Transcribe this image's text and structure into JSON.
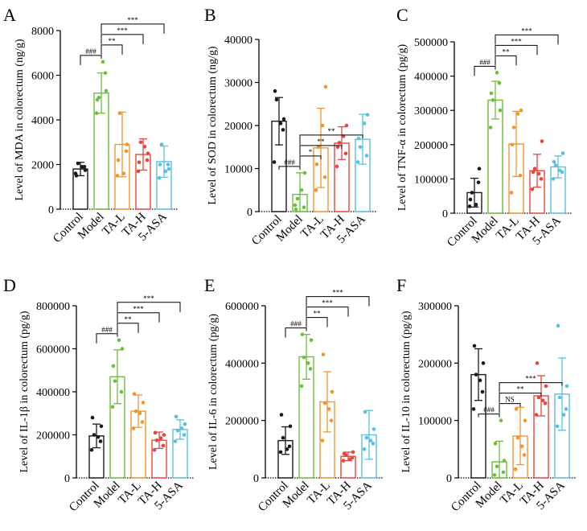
{
  "colors": {
    "Control": "#1a1a1a",
    "Model": "#6cbf3a",
    "TA-L": "#f0962e",
    "TA-H": "#e8453c",
    "5-ASA": "#5bbfe0"
  },
  "chart_data": [
    {
      "type": "bar",
      "panel": "A",
      "ylabel": "Level of MDA in colorectum (ng/g)",
      "ylim": [
        0,
        8000
      ],
      "yticks": [
        0,
        2000,
        4000,
        6000,
        8000
      ],
      "ytick_labels": [
        "0",
        "2000",
        "4000",
        "6000",
        "8000"
      ],
      "categories": [
        "Control",
        "Model",
        "TA-L",
        "TA-H",
        "5-ASA"
      ],
      "values": [
        1800,
        5200,
        2900,
        2450,
        2130
      ],
      "errors": [
        300,
        900,
        1450,
        700,
        700
      ],
      "points": [
        [
          1600,
          1900,
          2050,
          1750,
          1500,
          1900
        ],
        [
          4300,
          6100,
          5000,
          5300,
          4900,
          6600
        ],
        [
          1500,
          2600,
          4300,
          2900,
          2200,
          1600
        ],
        [
          1700,
          2200,
          3000,
          2500,
          2100,
          2800
        ],
        [
          1400,
          2000,
          2900,
          1800,
          2000,
          1700
        ]
      ],
      "comparisons": [
        {
          "from": 0,
          "to": 1,
          "label": "###"
        },
        {
          "from": 1,
          "to": 2,
          "label": "**"
        },
        {
          "from": 1,
          "to": 3,
          "label": "***"
        },
        {
          "from": 1,
          "to": 4,
          "label": "***"
        }
      ]
    },
    {
      "type": "bar",
      "panel": "B",
      "ylabel": "Level of SOD in colorectum (ng/g)",
      "ylim": [
        0,
        40000
      ],
      "yticks": [
        0,
        10000,
        20000,
        30000,
        40000
      ],
      "ytick_labels": [
        "0",
        "10000",
        "20000",
        "30000",
        "40000"
      ],
      "categories": [
        "Control",
        "Model",
        "TA-L",
        "TA-H",
        "5-ASA"
      ],
      "values": [
        21000,
        4000,
        14800,
        15900,
        16800
      ],
      "errors": [
        5500,
        5000,
        9200,
        3800,
        5800
      ],
      "points": [
        [
          11500,
          19000,
          26000,
          21500,
          28000,
          20500
        ],
        [
          1500,
          1000,
          3000,
          9000,
          500,
          5000
        ],
        [
          5000,
          8000,
          15000,
          29000,
          11000,
          20000
        ],
        [
          10500,
          13500,
          16000,
          20000,
          15000,
          17500
        ],
        [
          11500,
          13000,
          15000,
          22500,
          17000,
          20500
        ]
      ],
      "comparisons": [
        {
          "from": 0,
          "to": 1,
          "label": "###"
        },
        {
          "from": 1,
          "to": 2,
          "label": "*"
        },
        {
          "from": 1,
          "to": 3,
          "label": "**"
        },
        {
          "from": 1,
          "to": 4,
          "label": "**"
        }
      ]
    },
    {
      "type": "bar",
      "panel": "C",
      "ylabel": "Level of TNF-α in colorectum (pg/g)",
      "ylim": [
        0,
        500000
      ],
      "yticks": [
        0,
        100000,
        200000,
        300000,
        400000,
        500000
      ],
      "ytick_labels": [
        "0",
        "100000",
        "200000",
        "300000",
        "400000",
        "500000"
      ],
      "categories": [
        "Control",
        "Model",
        "TA-L",
        "TA-H",
        "5-ASA"
      ],
      "values": [
        60000,
        330000,
        202000,
        124000,
        135000
      ],
      "errors": [
        42000,
        55000,
        95000,
        48000,
        32000
      ],
      "points": [
        [
          20000,
          90000,
          60000,
          130000,
          40000,
          25000
        ],
        [
          250000,
          380000,
          330000,
          300000,
          350000,
          410000
        ],
        [
          60000,
          110000,
          250000,
          300000,
          200000,
          290000
        ],
        [
          70000,
          100000,
          130000,
          210000,
          120000,
          115000
        ],
        [
          100000,
          120000,
          140000,
          175000,
          150000,
          125000
        ]
      ],
      "comparisons": [
        {
          "from": 0,
          "to": 1,
          "label": "###"
        },
        {
          "from": 1,
          "to": 2,
          "label": "**"
        },
        {
          "from": 1,
          "to": 3,
          "label": "***"
        },
        {
          "from": 1,
          "to": 4,
          "label": "***"
        }
      ]
    },
    {
      "type": "bar",
      "panel": "D",
      "ylabel": "Level of IL-1β in colorectum (pg/g)",
      "ylim": [
        0,
        800000
      ],
      "yticks": [
        0,
        200000,
        400000,
        600000,
        800000
      ],
      "ytick_labels": [
        "0",
        "200000",
        "400000",
        "600000",
        "800000"
      ],
      "categories": [
        "Control",
        "Model",
        "TA-L",
        "TA-H",
        "5-ASA"
      ],
      "values": [
        195000,
        470000,
        310000,
        175000,
        225000
      ],
      "errors": [
        55000,
        125000,
        75000,
        38000,
        45000
      ],
      "points": [
        [
          130000,
          170000,
          200000,
          240000,
          280000,
          190000
        ],
        [
          330000,
          400000,
          450000,
          600000,
          520000,
          640000
        ],
        [
          230000,
          260000,
          310000,
          350000,
          390000,
          300000
        ],
        [
          130000,
          150000,
          175000,
          200000,
          210000,
          185000
        ],
        [
          170000,
          200000,
          220000,
          250000,
          285000,
          230000
        ]
      ],
      "comparisons": [
        {
          "from": 0,
          "to": 1,
          "label": "###"
        },
        {
          "from": 1,
          "to": 2,
          "label": "**"
        },
        {
          "from": 1,
          "to": 3,
          "label": "***"
        },
        {
          "from": 1,
          "to": 4,
          "label": "***"
        }
      ]
    },
    {
      "type": "bar",
      "panel": "E",
      "ylabel": "Level of IL-6 in colorectum (pg/g)",
      "ylim": [
        0,
        600000
      ],
      "yticks": [
        0,
        200000,
        400000,
        600000
      ],
      "ytick_labels": [
        "0",
        "200000",
        "400000",
        "600000"
      ],
      "categories": [
        "Control",
        "Model",
        "TA-L",
        "TA-H",
        "5-ASA"
      ],
      "values": [
        130000,
        422000,
        265000,
        75000,
        150000
      ],
      "errors": [
        48000,
        78000,
        105000,
        15000,
        85000
      ],
      "points": [
        [
          90000,
          110000,
          140000,
          180000,
          220000,
          100000
        ],
        [
          320000,
          380000,
          420000,
          480000,
          500000,
          400000
        ],
        [
          130000,
          200000,
          260000,
          300000,
          430000,
          240000
        ],
        [
          60000,
          70000,
          80000,
          90000,
          85000,
          65000
        ],
        [
          100000,
          120000,
          140000,
          170000,
          230000,
          130000
        ]
      ],
      "comparisons": [
        {
          "from": 0,
          "to": 1,
          "label": "###"
        },
        {
          "from": 1,
          "to": 2,
          "label": "**"
        },
        {
          "from": 1,
          "to": 3,
          "label": "***"
        },
        {
          "from": 1,
          "to": 4,
          "label": "***"
        }
      ]
    },
    {
      "type": "bar",
      "panel": "F",
      "ylabel": "Level of IL-10 in colorectum (pg/g)",
      "ylim": [
        0,
        300000
      ],
      "yticks": [
        0,
        100000,
        200000,
        300000
      ],
      "ytick_labels": [
        "0",
        "100000",
        "200000",
        "300000"
      ],
      "categories": [
        "Control",
        "Model",
        "TA-L",
        "TA-H",
        "5-ASA"
      ],
      "values": [
        180000,
        28000,
        73000,
        143000,
        146000
      ],
      "errors": [
        45000,
        36000,
        50000,
        35000,
        63000
      ],
      "points": [
        [
          120000,
          150000,
          180000,
          200000,
          230000,
          170000
        ],
        [
          5000,
          10000,
          20000,
          30000,
          60000,
          100000
        ],
        [
          15000,
          40000,
          70000,
          100000,
          120000,
          55000
        ],
        [
          110000,
          130000,
          140000,
          160000,
          200000,
          135000
        ],
        [
          90000,
          120000,
          140000,
          160000,
          265000,
          110000
        ]
      ],
      "comparisons": [
        {
          "from": 0,
          "to": 1,
          "label": "###"
        },
        {
          "from": 1,
          "to": 2,
          "label": "NS"
        },
        {
          "from": 1,
          "to": 3,
          "label": "**"
        },
        {
          "from": 1,
          "to": 4,
          "label": "***"
        }
      ]
    }
  ]
}
